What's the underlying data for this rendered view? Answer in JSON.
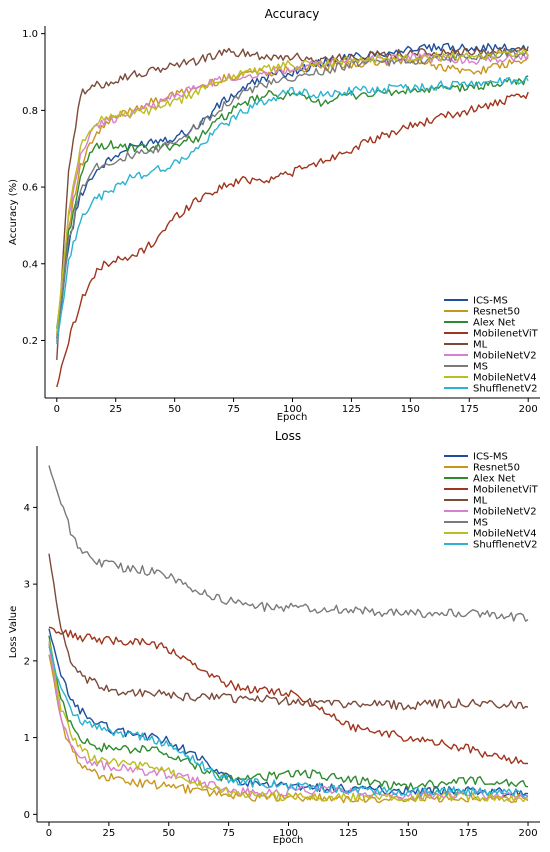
{
  "chart_data": [
    {
      "type": "line",
      "title": "Accuracy",
      "xlabel": "Epoch",
      "ylabel": "Accuracy (%)",
      "xlim": [
        -5,
        205
      ],
      "ylim": [
        0.05,
        1.02
      ],
      "xticks": [
        0,
        25,
        50,
        75,
        100,
        125,
        150,
        175,
        200
      ],
      "yticks": [
        0.2,
        0.4,
        0.6,
        0.8,
        1.0
      ],
      "ytick_labels": [
        "0.2",
        "0.4",
        "0.6",
        "0.8",
        "1.0"
      ],
      "legend_position": "bottom-right",
      "grid": false,
      "x": [
        0,
        5,
        10,
        15,
        20,
        25,
        30,
        40,
        50,
        60,
        70,
        80,
        90,
        100,
        110,
        125,
        150,
        175,
        200
      ],
      "series": [
        {
          "name": "ICS-MS",
          "color": "#1f4e9c",
          "values": [
            0.2,
            0.45,
            0.58,
            0.63,
            0.66,
            0.68,
            0.7,
            0.72,
            0.73,
            0.76,
            0.82,
            0.86,
            0.89,
            0.9,
            0.92,
            0.94,
            0.96,
            0.965,
            0.96
          ]
        },
        {
          "name": "Resnet50",
          "color": "#c8961e",
          "values": [
            0.22,
            0.5,
            0.65,
            0.72,
            0.76,
            0.78,
            0.8,
            0.82,
            0.84,
            0.86,
            0.88,
            0.9,
            0.9,
            0.91,
            0.91,
            0.92,
            0.93,
            0.9,
            0.93
          ]
        },
        {
          "name": "Alex Net",
          "color": "#2e8b2e",
          "values": [
            0.23,
            0.48,
            0.62,
            0.7,
            0.71,
            0.71,
            0.7,
            0.7,
            0.71,
            0.73,
            0.78,
            0.82,
            0.84,
            0.84,
            0.82,
            0.84,
            0.85,
            0.86,
            0.88
          ]
        },
        {
          "name": "MobilenetViT",
          "color": "#a0351e",
          "values": [
            0.08,
            0.2,
            0.3,
            0.36,
            0.4,
            0.41,
            0.41,
            0.45,
            0.52,
            0.57,
            0.6,
            0.62,
            0.62,
            0.64,
            0.66,
            0.7,
            0.76,
            0.8,
            0.84
          ]
        },
        {
          "name": "ML",
          "color": "#7b4a3a",
          "values": [
            0.15,
            0.65,
            0.84,
            0.86,
            0.87,
            0.88,
            0.89,
            0.9,
            0.92,
            0.93,
            0.95,
            0.95,
            0.94,
            0.94,
            0.93,
            0.94,
            0.95,
            0.95,
            0.96
          ]
        },
        {
          "name": "MobileNetV2",
          "color": "#d77fd0",
          "values": [
            0.21,
            0.52,
            0.68,
            0.75,
            0.77,
            0.78,
            0.79,
            0.81,
            0.84,
            0.86,
            0.88,
            0.89,
            0.9,
            0.91,
            0.92,
            0.93,
            0.94,
            0.93,
            0.94
          ]
        },
        {
          "name": "MS",
          "color": "#7a7a7a",
          "values": [
            0.2,
            0.46,
            0.59,
            0.65,
            0.66,
            0.67,
            0.68,
            0.69,
            0.72,
            0.76,
            0.81,
            0.85,
            0.87,
            0.88,
            0.9,
            0.92,
            0.93,
            0.94,
            0.95
          ]
        },
        {
          "name": "MobileNetV4",
          "color": "#bcbd22",
          "values": [
            0.22,
            0.53,
            0.7,
            0.76,
            0.78,
            0.79,
            0.79,
            0.8,
            0.82,
            0.85,
            0.88,
            0.9,
            0.91,
            0.92,
            0.92,
            0.93,
            0.94,
            0.94,
            0.95
          ]
        },
        {
          "name": "ShufflenetV2",
          "color": "#2bb3d1",
          "values": [
            0.19,
            0.4,
            0.52,
            0.56,
            0.58,
            0.6,
            0.62,
            0.64,
            0.66,
            0.7,
            0.76,
            0.8,
            0.83,
            0.85,
            0.84,
            0.85,
            0.86,
            0.87,
            0.88
          ]
        }
      ]
    },
    {
      "type": "line",
      "title": "Loss",
      "xlabel": "Epoch",
      "ylabel": "Loss Value",
      "xlim": [
        -5,
        205
      ],
      "ylim": [
        -0.1,
        4.8
      ],
      "xticks": [
        0,
        25,
        50,
        75,
        100,
        125,
        150,
        175,
        200
      ],
      "yticks": [
        0,
        1,
        2,
        3,
        4
      ],
      "ytick_labels": [
        "0",
        "1",
        "2",
        "3",
        "4"
      ],
      "legend_position": "top-right",
      "grid": false,
      "x": [
        0,
        5,
        10,
        15,
        20,
        25,
        30,
        40,
        50,
        60,
        70,
        80,
        90,
        100,
        110,
        125,
        150,
        175,
        200
      ],
      "series": [
        {
          "name": "ICS-MS",
          "color": "#1f4e9c",
          "values": [
            2.4,
            1.8,
            1.45,
            1.3,
            1.2,
            1.12,
            1.08,
            1.02,
            0.95,
            0.8,
            0.55,
            0.42,
            0.38,
            0.36,
            0.35,
            0.33,
            0.31,
            0.3,
            0.28
          ]
        },
        {
          "name": "Resnet50",
          "color": "#c8961e",
          "values": [
            2.1,
            1.2,
            0.8,
            0.62,
            0.52,
            0.48,
            0.44,
            0.4,
            0.36,
            0.32,
            0.27,
            0.24,
            0.22,
            0.22,
            0.22,
            0.21,
            0.21,
            0.22,
            0.2
          ]
        },
        {
          "name": "Alex Net",
          "color": "#2e8b2e",
          "values": [
            2.3,
            1.5,
            1.1,
            0.95,
            0.88,
            0.86,
            0.85,
            0.84,
            0.8,
            0.65,
            0.5,
            0.45,
            0.48,
            0.55,
            0.52,
            0.45,
            0.35,
            0.45,
            0.38
          ]
        },
        {
          "name": "MobilenetViT",
          "color": "#a0351e",
          "values": [
            2.42,
            2.37,
            2.33,
            2.3,
            2.28,
            2.27,
            2.26,
            2.25,
            2.15,
            1.95,
            1.75,
            1.65,
            1.62,
            1.58,
            1.45,
            1.15,
            1.0,
            0.85,
            0.65
          ]
        },
        {
          "name": "ML",
          "color": "#7b4a3a",
          "values": [
            3.4,
            2.4,
            1.9,
            1.75,
            1.7,
            1.62,
            1.6,
            1.58,
            1.55,
            1.52,
            1.55,
            1.5,
            1.5,
            1.48,
            1.47,
            1.44,
            1.42,
            1.45,
            1.42
          ]
        },
        {
          "name": "MobileNetV2",
          "color": "#d77fd0",
          "values": [
            2.2,
            1.25,
            0.85,
            0.72,
            0.66,
            0.62,
            0.6,
            0.56,
            0.52,
            0.45,
            0.35,
            0.3,
            0.28,
            0.3,
            0.32,
            0.28,
            0.25,
            0.26,
            0.24
          ]
        },
        {
          "name": "MS",
          "color": "#7a7a7a",
          "values": [
            4.55,
            4.05,
            3.6,
            3.4,
            3.3,
            3.25,
            3.22,
            3.18,
            3.1,
            2.95,
            2.82,
            2.75,
            2.7,
            2.7,
            2.68,
            2.66,
            2.62,
            2.63,
            2.56
          ]
        },
        {
          "name": "MobileNetV4",
          "color": "#bcbd22",
          "values": [
            2.25,
            1.4,
            1.0,
            0.8,
            0.72,
            0.68,
            0.66,
            0.62,
            0.55,
            0.42,
            0.32,
            0.26,
            0.24,
            0.23,
            0.22,
            0.22,
            0.22,
            0.23,
            0.22
          ]
        },
        {
          "name": "ShufflenetV2",
          "color": "#2bb3d1",
          "values": [
            2.2,
            1.6,
            1.3,
            1.2,
            1.15,
            1.1,
            1.05,
            1.0,
            0.9,
            0.72,
            0.5,
            0.42,
            0.4,
            0.38,
            0.36,
            0.32,
            0.3,
            0.3,
            0.28
          ]
        }
      ]
    }
  ]
}
